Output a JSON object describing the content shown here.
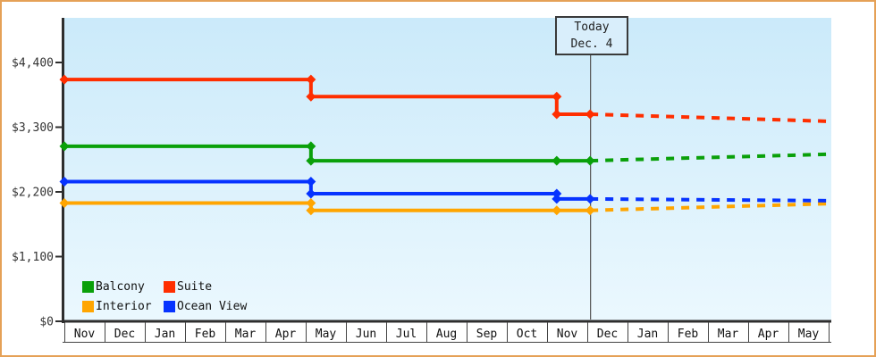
{
  "window": {
    "frame_border_color": "#e5a157",
    "background_color": "#ffffff"
  },
  "colors": {
    "plot_bg_top": "#cbeafa",
    "plot_bg_bottom": "#ebf8fe",
    "axis": "#2e2e2e",
    "tick_label": "#333333",
    "month_label": "#111111",
    "today_line": "#555555"
  },
  "chart_data": {
    "type": "line",
    "title": "",
    "xlabel": "",
    "ylabel": "",
    "grid": false,
    "legend_position": "bottom-left",
    "x_months": [
      "Nov",
      "Dec",
      "Jan",
      "Feb",
      "Mar",
      "Apr",
      "May",
      "Jun",
      "Jul",
      "Aug",
      "Sep",
      "Oct",
      "Nov",
      "Dec",
      "Jan",
      "Feb",
      "Mar",
      "Apr",
      "May"
    ],
    "y_ticks": [
      {
        "label": "$0",
        "value": 0
      },
      {
        "label": "$1,100",
        "value": 1100
      },
      {
        "label": "$2,200",
        "value": 2200
      },
      {
        "label": "$3,300",
        "value": 3300
      },
      {
        "label": "$4,400",
        "value": 4400
      }
    ],
    "ylim": [
      0,
      5150
    ],
    "annotations": {
      "today": {
        "title": "Today",
        "date": "Dec. 4",
        "t": 13.07
      }
    },
    "series": [
      {
        "name": "Balcony",
        "color": "#0aa00a",
        "solid": [
          [
            0,
            2975
          ],
          [
            6.13,
            2975
          ],
          [
            6.13,
            2730
          ],
          [
            13.07,
            2730
          ]
        ],
        "dashed": [
          [
            13.07,
            2730
          ],
          [
            19,
            2840
          ]
        ],
        "markers": [
          [
            0,
            2975
          ],
          [
            6.13,
            2975
          ],
          [
            6.13,
            2730
          ],
          [
            12.24,
            2730
          ],
          [
            13.07,
            2730
          ]
        ]
      },
      {
        "name": "Suite",
        "color": "#ff2e00",
        "solid": [
          [
            0,
            4110
          ],
          [
            6.13,
            4110
          ],
          [
            6.13,
            3820
          ],
          [
            12.24,
            3820
          ],
          [
            12.24,
            3520
          ],
          [
            13.07,
            3520
          ]
        ],
        "dashed": [
          [
            13.07,
            3520
          ],
          [
            19,
            3400
          ]
        ],
        "markers": [
          [
            0,
            4110
          ],
          [
            6.13,
            4110
          ],
          [
            6.13,
            3820
          ],
          [
            12.24,
            3820
          ],
          [
            12.24,
            3520
          ],
          [
            13.07,
            3520
          ]
        ]
      },
      {
        "name": "Interior",
        "color": "#ffa500",
        "solid": [
          [
            0,
            2010
          ],
          [
            6.13,
            2010
          ],
          [
            6.13,
            1885
          ],
          [
            13.07,
            1885
          ]
        ],
        "dashed": [
          [
            13.07,
            1885
          ],
          [
            19,
            2000
          ]
        ],
        "markers": [
          [
            0,
            2010
          ],
          [
            6.13,
            2010
          ],
          [
            6.13,
            1885
          ],
          [
            12.24,
            1885
          ],
          [
            13.07,
            1885
          ]
        ]
      },
      {
        "name": "Ocean View",
        "color": "#0633ff",
        "solid": [
          [
            0,
            2375
          ],
          [
            6.13,
            2375
          ],
          [
            6.13,
            2170
          ],
          [
            12.24,
            2170
          ],
          [
            12.24,
            2080
          ],
          [
            13.07,
            2080
          ]
        ],
        "dashed": [
          [
            13.07,
            2080
          ],
          [
            19,
            2050
          ]
        ],
        "markers": [
          [
            0,
            2375
          ],
          [
            6.13,
            2375
          ],
          [
            6.13,
            2170
          ],
          [
            12.24,
            2170
          ],
          [
            12.24,
            2080
          ],
          [
            13.07,
            2080
          ]
        ]
      }
    ]
  },
  "legend_order": [
    0,
    1,
    2,
    3
  ]
}
